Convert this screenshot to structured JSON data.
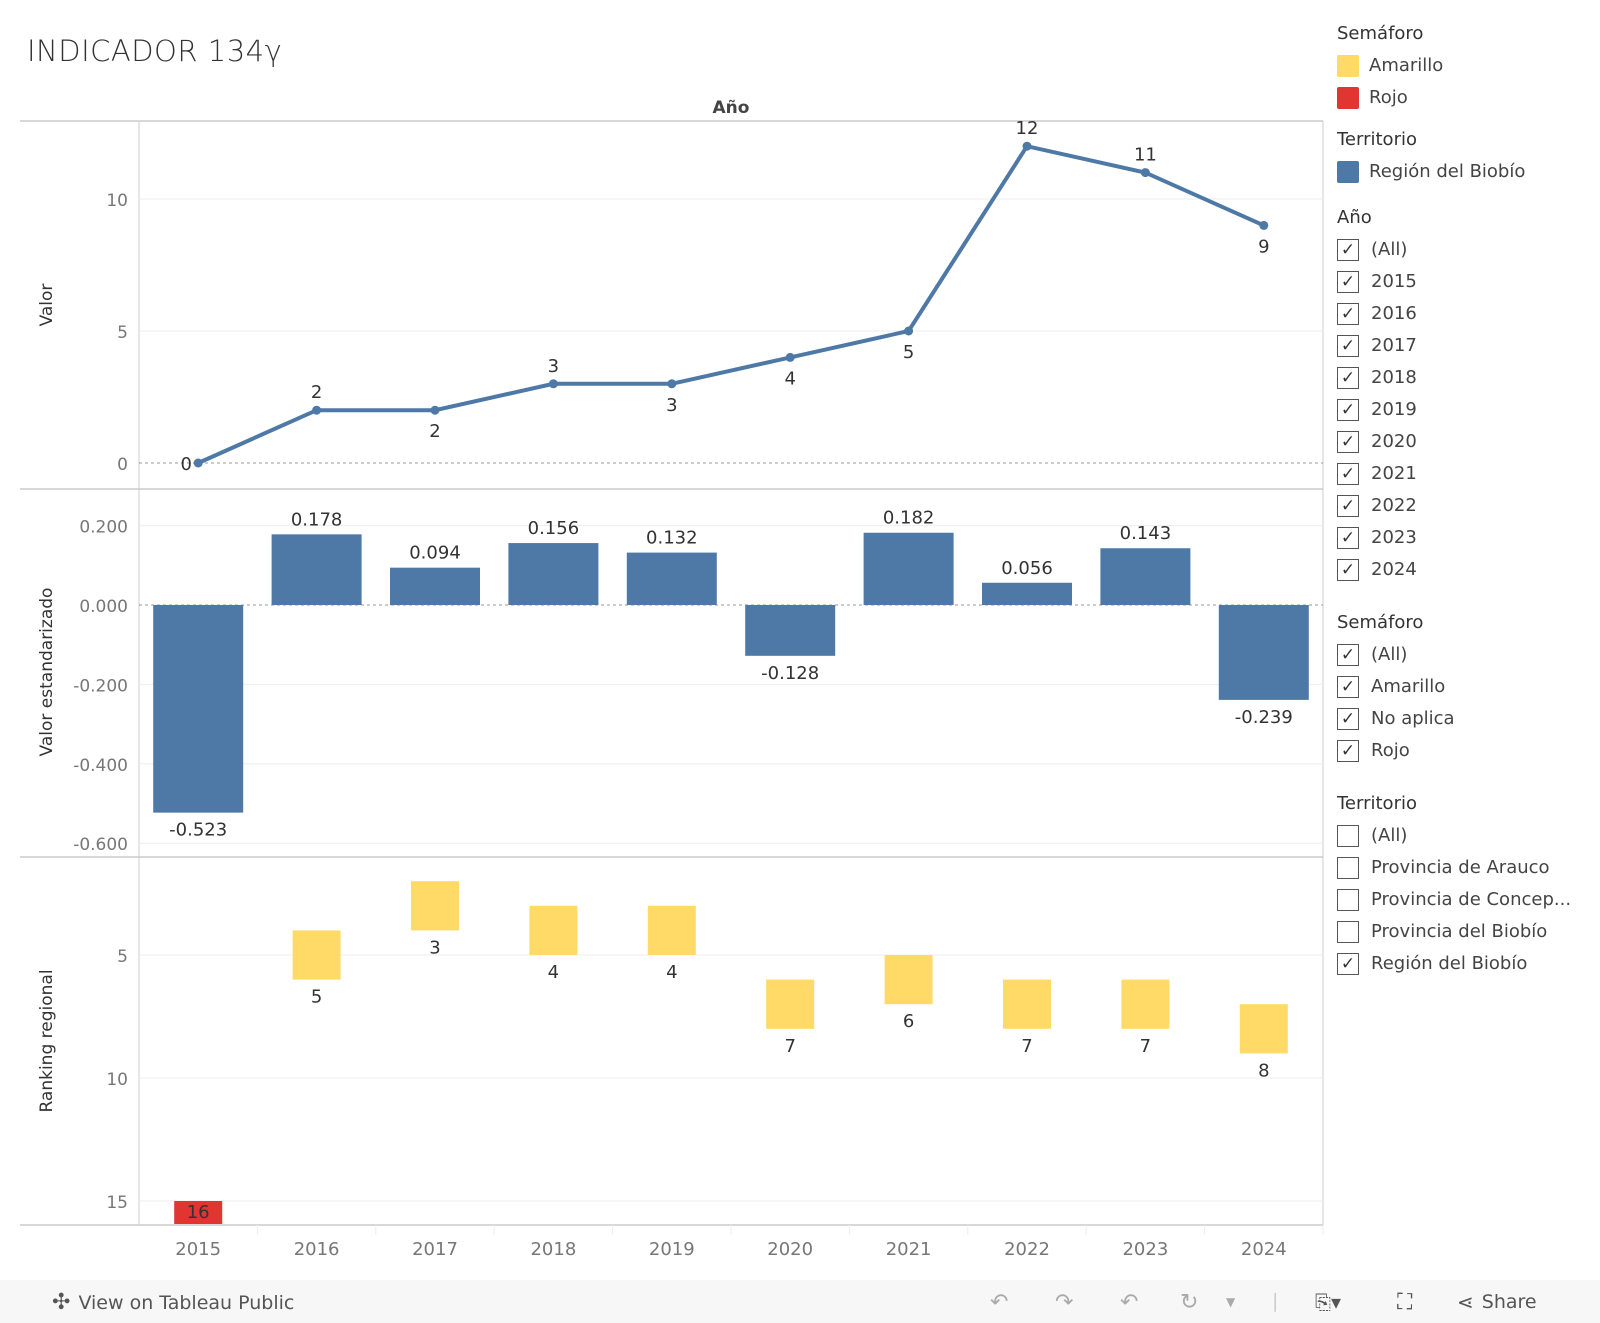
{
  "title": "INDICADOR 134γ",
  "header": "Año",
  "colors": {
    "blue": "#4e79a7",
    "yellow": "#ffda66",
    "red": "#e03531"
  },
  "chart_data": [
    {
      "type": "line",
      "ylabel": "Valor",
      "x": [
        "2015",
        "2016",
        "2017",
        "2018",
        "2019",
        "2020",
        "2021",
        "2022",
        "2023",
        "2024"
      ],
      "values": [
        0,
        2,
        2,
        3,
        3,
        4,
        5,
        12,
        11,
        9
      ],
      "yticks": [
        "0",
        "5",
        "10"
      ],
      "ylim": [
        -1,
        13
      ],
      "series_color": "#4e79a7"
    },
    {
      "type": "bar",
      "ylabel": "Valor estandarizado",
      "x": [
        "2015",
        "2016",
        "2017",
        "2018",
        "2019",
        "2020",
        "2021",
        "2022",
        "2023",
        "2024"
      ],
      "values": [
        -0.523,
        0.178,
        0.094,
        0.156,
        0.132,
        -0.128,
        0.182,
        0.056,
        0.143,
        -0.239
      ],
      "labels": [
        "-0.523",
        "0.178",
        "0.094",
        "0.156",
        "0.132",
        "-0.128",
        "0.182",
        "0.056",
        "0.143",
        "-0.239"
      ],
      "yticks": [
        "0.200",
        "0.000",
        "-0.200",
        "-0.400",
        "-0.600"
      ],
      "ylim": [
        -0.6,
        0.3
      ]
    },
    {
      "type": "bar",
      "ylabel": "Ranking regional",
      "x": [
        "2015",
        "2016",
        "2017",
        "2018",
        "2019",
        "2020",
        "2021",
        "2022",
        "2023",
        "2024"
      ],
      "values": [
        16,
        5,
        3,
        4,
        4,
        7,
        6,
        7,
        7,
        8
      ],
      "semaforo": [
        "Rojo",
        "Amarillo",
        "Amarillo",
        "Amarillo",
        "Amarillo",
        "Amarillo",
        "Amarillo",
        "Amarillo",
        "Amarillo",
        "Amarillo"
      ],
      "yticks": [
        "5",
        "10",
        "15"
      ],
      "ylim": [
        1,
        16
      ],
      "reversed": true
    }
  ],
  "legend": {
    "semaforo": {
      "title": "Semáforo",
      "items": [
        {
          "label": "Amarillo",
          "color": "#ffda66"
        },
        {
          "label": "Rojo",
          "color": "#e03531"
        }
      ]
    },
    "territorio": {
      "title": "Territorio",
      "items": [
        {
          "label": "Región del Biobío",
          "color": "#4e79a7"
        }
      ]
    }
  },
  "filters": {
    "anio": {
      "title": "Año",
      "items": [
        {
          "label": "(All)",
          "checked": true
        },
        {
          "label": "2015",
          "checked": true
        },
        {
          "label": "2016",
          "checked": true
        },
        {
          "label": "2017",
          "checked": true
        },
        {
          "label": "2018",
          "checked": true
        },
        {
          "label": "2019",
          "checked": true
        },
        {
          "label": "2020",
          "checked": true
        },
        {
          "label": "2021",
          "checked": true
        },
        {
          "label": "2022",
          "checked": true
        },
        {
          "label": "2023",
          "checked": true
        },
        {
          "label": "2024",
          "checked": true
        }
      ]
    },
    "semaforo": {
      "title": "Semáforo",
      "items": [
        {
          "label": "(All)",
          "checked": true
        },
        {
          "label": "Amarillo",
          "checked": true
        },
        {
          "label": "No aplica",
          "checked": true
        },
        {
          "label": "Rojo",
          "checked": true
        }
      ]
    },
    "territorio": {
      "title": "Territorio",
      "items": [
        {
          "label": "(All)",
          "checked": false
        },
        {
          "label": "Provincia de Arauco",
          "checked": false
        },
        {
          "label": "Provincia de Concep...",
          "checked": false
        },
        {
          "label": "Provincia del Biobío",
          "checked": false
        },
        {
          "label": "Región del Biobío",
          "checked": true
        }
      ]
    }
  },
  "toolbar": {
    "view_label": "View on Tableau Public",
    "share_label": "Share"
  }
}
